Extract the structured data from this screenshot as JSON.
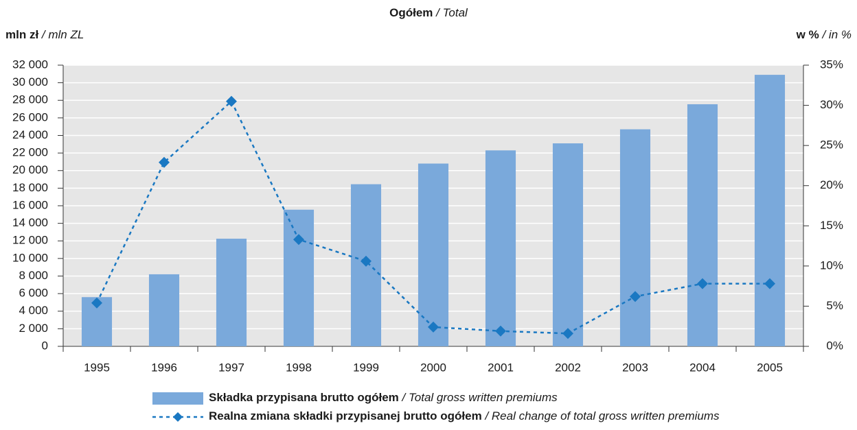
{
  "chart_data": {
    "type": "bar",
    "title": "Ogółem / Total",
    "y_label": "mln zł / mln ZL",
    "y2_label": "w % / in %",
    "categories": [
      "1995",
      "1996",
      "1997",
      "1998",
      "1999",
      "2000",
      "2001",
      "2002",
      "2003",
      "2004",
      "2005"
    ],
    "series": [
      {
        "name": "Składka przypisana brutto ogółem / Total gross written premiums",
        "type": "bar",
        "color": "#7aa9db",
        "values": [
          5600,
          8200,
          12250,
          15550,
          18450,
          20800,
          22300,
          23100,
          24700,
          27550,
          30900
        ]
      },
      {
        "name": "Realna zmiana składki przypisanej brutto ogółem / Real change of total gross written premiums",
        "type": "line",
        "axis": "y2",
        "color": "#1a78c2",
        "values": [
          5.4,
          22.9,
          30.5,
          13.3,
          10.6,
          2.4,
          1.9,
          1.6,
          6.2,
          7.8,
          7.8
        ]
      }
    ],
    "ylim": [
      0,
      32000
    ],
    "yticks": [
      0,
      {
        "value": 2000,
        "label": "2 000"
      },
      {
        "value": 4000,
        "label": "4 000"
      },
      {
        "value": 6000,
        "label": "6 000"
      },
      {
        "value": 8000,
        "label": "8 000"
      },
      {
        "value": 10000,
        "label": "10 000"
      },
      {
        "value": 12000,
        "label": "12 000"
      },
      {
        "value": 14000,
        "label": "14 000"
      },
      {
        "value": 16000,
        "label": "16 000"
      },
      {
        "value": 18000,
        "label": "18 000"
      },
      {
        "value": 20000,
        "label": "20 000"
      },
      {
        "value": 22000,
        "label": "22 000"
      },
      {
        "value": 24000,
        "label": "24 000"
      },
      {
        "value": 26000,
        "label": "26 000"
      },
      {
        "value": 28000,
        "label": "28 000"
      },
      {
        "value": 30000,
        "label": "30 000"
      },
      {
        "value": 32000,
        "label": "32 000"
      }
    ],
    "y2lim": [
      0,
      35
    ],
    "y2ticks": [
      {
        "value": 0,
        "label": "0%"
      },
      {
        "value": 5,
        "label": "5%"
      },
      {
        "value": 10,
        "label": "10%"
      },
      {
        "value": 15,
        "label": "15%"
      },
      {
        "value": 20,
        "label": "20%"
      },
      {
        "value": 25,
        "label": "25%"
      },
      {
        "value": 30,
        "label": "30%"
      },
      {
        "value": 35,
        "label": "35%"
      }
    ],
    "grid": true
  }
}
